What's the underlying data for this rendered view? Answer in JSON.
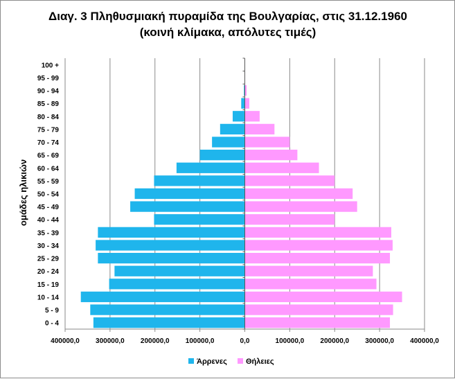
{
  "chart_data": {
    "type": "bar",
    "orientation": "horizontal",
    "title": "Διαγ. 3 Πληθυσμιακή πυραμίδα της Βουλγαρίας, στις 31.12.1960",
    "subtitle": "(κοινή κλίμακα, απόλυτες τιμές)",
    "ylabel": "ομάδες ηλικιών",
    "xlabel": "",
    "xlim": [
      -400000,
      400000
    ],
    "x_ticks": [
      -400000,
      -300000,
      -200000,
      -100000,
      0,
      100000,
      200000,
      300000,
      400000
    ],
    "x_tick_labels": [
      "400000,0",
      "300000,0",
      "200000,0",
      "100000,0",
      "0,0",
      "100000,0",
      "200000,0",
      "300000,0",
      "400000,0"
    ],
    "grid": true,
    "legend_position": "bottom",
    "categories": [
      "0 - 4",
      "5 - 9",
      "10 - 14",
      "15 - 19",
      "20 - 24",
      "25 - 29",
      "30 - 34",
      "35 - 39",
      "40 - 44",
      "45 - 49",
      "50 - 54",
      "55 - 59",
      "60 - 64",
      "65 - 69",
      "70 - 74",
      "75 - 79",
      "80 - 84",
      "85 - 89",
      "90 - 94",
      "95 - 99",
      "100 +"
    ],
    "series": [
      {
        "name": "Άρρενες",
        "color": "#1fb5ec",
        "values": [
          337000,
          344000,
          365000,
          302000,
          290000,
          327000,
          332000,
          327000,
          202000,
          255000,
          245000,
          202000,
          152000,
          100000,
          73000,
          55000,
          27000,
          8000,
          2000,
          500,
          100
        ]
      },
      {
        "name": "Θήλειες",
        "color": "#ff99ff",
        "values": [
          323000,
          330000,
          350000,
          293000,
          285000,
          323000,
          329000,
          326000,
          200000,
          250000,
          240000,
          200000,
          165000,
          117000,
          100000,
          66000,
          33000,
          10000,
          4000,
          800,
          100
        ]
      }
    ]
  }
}
